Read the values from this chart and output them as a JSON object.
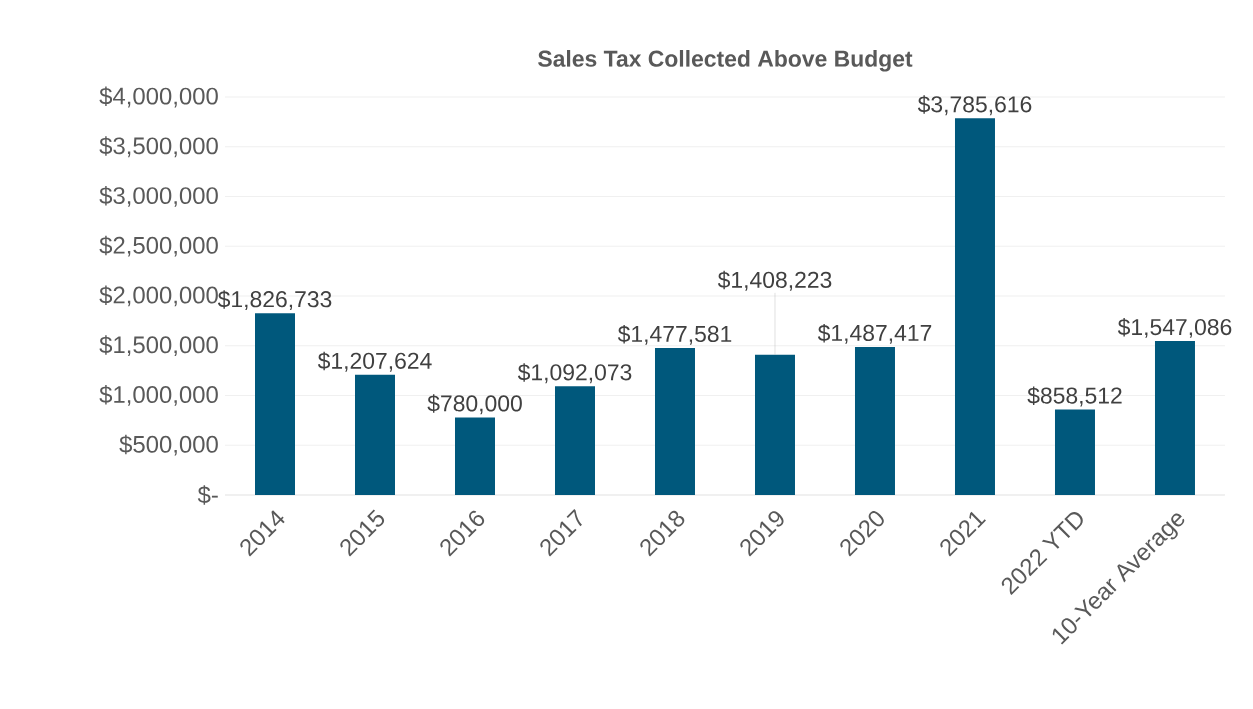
{
  "chart_data": {
    "type": "bar",
    "title": "Sales Tax Collected Above Budget",
    "categories": [
      "2014",
      "2015",
      "2016",
      "2017",
      "2018",
      "2019",
      "2020",
      "2021",
      "2022 YTD",
      "10-Year Average"
    ],
    "values": [
      1826733,
      1207624,
      780000,
      1092073,
      1477581,
      1408223,
      1487417,
      3785616,
      858512,
      1547086
    ],
    "value_labels": [
      "$1,826,733",
      "$1,207,624",
      "$780,000",
      "$1,092,073",
      "$1,477,581",
      "$1,408,223",
      "$1,487,417",
      "$3,785,616",
      "$858,512",
      "$1,547,086"
    ],
    "color": "#00587c",
    "ylim": [
      0,
      4000000
    ],
    "yticks": [
      {
        "value": 0,
        "label": "$-"
      },
      {
        "value": 500000,
        "label": "$500,000"
      },
      {
        "value": 1000000,
        "label": "$1,000,000"
      },
      {
        "value": 1500000,
        "label": "$1,500,000"
      },
      {
        "value": 2000000,
        "label": "$2,000,000"
      },
      {
        "value": 2500000,
        "label": "$2,500,000"
      },
      {
        "value": 3000000,
        "label": "$3,000,000"
      },
      {
        "value": 3500000,
        "label": "$3,500,000"
      },
      {
        "value": 4000000,
        "label": "$4,000,000"
      }
    ],
    "grid": "y"
  }
}
